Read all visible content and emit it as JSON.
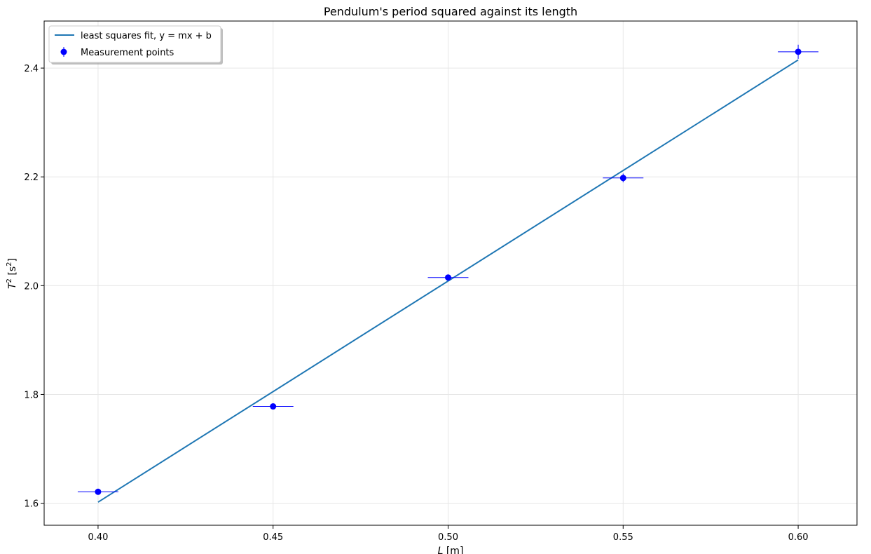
{
  "chart_data": {
    "type": "scatter",
    "title": "Pendulum's period squared against its length",
    "xlabel": {
      "var": "L",
      "unit": " [m]"
    },
    "ylabel": {
      "var": "T",
      "sup": "2",
      "unit_pre": " [s",
      "unit_sup": "2",
      "unit_post": "]"
    },
    "xlim": [
      0.3846,
      0.6168
    ],
    "ylim": [
      1.5595,
      2.4865
    ],
    "xticks": [
      0.4,
      0.45,
      0.5,
      0.55,
      0.6
    ],
    "xtick_labels": [
      "0.40",
      "0.45",
      "0.50",
      "0.55",
      "0.60"
    ],
    "yticks": [
      1.6,
      1.8,
      2.0,
      2.2,
      2.4
    ],
    "ytick_labels": [
      "1.6",
      "1.8",
      "2.0",
      "2.2",
      "2.4"
    ],
    "grid": true,
    "legend_position": "top-left",
    "series": [
      {
        "name": "least squares fit, y = mx + b",
        "kind": "line",
        "color": "#1f77b4",
        "x": [
          0.4,
          0.6
        ],
        "y": [
          1.602,
          2.415
        ]
      },
      {
        "name": "Measurement points",
        "kind": "errorbar",
        "color": "#0000ff",
        "x": [
          0.4,
          0.45,
          0.5,
          0.55,
          0.6
        ],
        "y": [
          1.621,
          1.778,
          2.015,
          2.198,
          2.43
        ],
        "xerr": [
          0.0058,
          0.0058,
          0.0058,
          0.0058,
          0.0058
        ],
        "yerr": [
          0.002,
          0.003,
          0.005,
          0.008,
          0.013
        ]
      }
    ]
  }
}
